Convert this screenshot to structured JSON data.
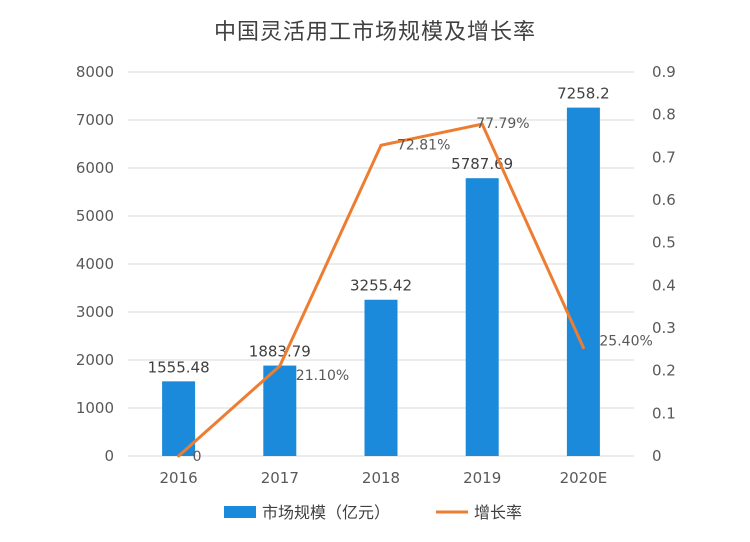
{
  "chart_data": {
    "type": "bar+line",
    "title": "中国灵活用工市场规模及增长率",
    "categories": [
      "2016",
      "2017",
      "2018",
      "2019",
      "2020E"
    ],
    "series": [
      {
        "name": "市场规模（亿元）",
        "type": "bar",
        "axis": "left",
        "color": "#1C8ADB",
        "values": [
          1555.48,
          1883.79,
          3255.42,
          5787.69,
          7258.2
        ],
        "labels": [
          "1555.48",
          "1883.79",
          "3255.42",
          "5787.69",
          "7258.2"
        ]
      },
      {
        "name": "增长率",
        "type": "line",
        "axis": "right",
        "color": "#ED7D31",
        "values": [
          0,
          0.211,
          0.7281,
          0.7779,
          0.254
        ],
        "labels": [
          "0",
          "21.10%",
          "72.81%",
          "77.79%",
          "25.40%"
        ]
      }
    ],
    "y_left": {
      "min": 0,
      "max": 8000,
      "ticks": [
        "0",
        "1000",
        "2000",
        "3000",
        "4000",
        "5000",
        "6000",
        "7000",
        "8000"
      ]
    },
    "y_right": {
      "min": 0,
      "max": 0.9,
      "ticks": [
        "0",
        "0.1",
        "0.2",
        "0.3",
        "0.4",
        "0.5",
        "0.6",
        "0.7",
        "0.8",
        "0.9"
      ]
    },
    "grid": true,
    "legend": "bottom"
  }
}
